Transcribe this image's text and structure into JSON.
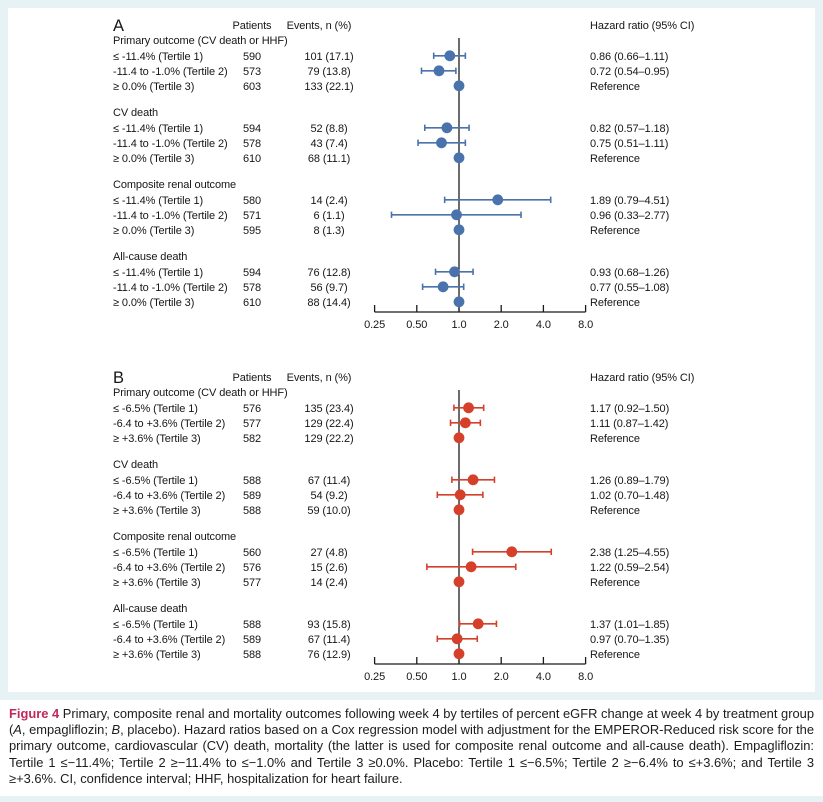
{
  "figure": {
    "frame_color": "#e7f2f5",
    "background": "#ffffff",
    "text_color": "#161616",
    "caption": {
      "label_color": "#c0295b",
      "segments": [
        {
          "text": "Figure 4",
          "style": "label"
        },
        {
          "text": " Primary, composite renal and mortality outcomes following week 4 by tertiles of percent eGFR change at week 4 by treatment group (",
          "style": "normal"
        },
        {
          "text": "A",
          "style": "italic"
        },
        {
          "text": ", empagliflozin; ",
          "style": "normal"
        },
        {
          "text": "B",
          "style": "italic"
        },
        {
          "text": ", placebo). Hazard ratios based on a Cox regression model with adjustment for the EMPEROR-Reduced risk score for the primary outcome, cardiovascular (CV) death, mortality (the latter is used for composite renal outcome and all-cause death). Empagliflozin: Tertile 1 ≤−11.4%; Tertile 2 ≥−11.4% to ≤−1.0% and Tertile 3 ≥0.0%. Placebo: Tertile 1 ≤−6.5%; Tertile 2 ≥−6.4% to ≤+3.6%; and Tertile 3 ≥+3.6%. CI, confidence interval; HHF, hospitalization for heart failure.",
          "style": "normal"
        }
      ]
    }
  },
  "chart_data": [
    {
      "type": "forest",
      "panel_label": "A",
      "treatment": "empagliflozin",
      "marker_color": "#4a72ad",
      "column_headers": {
        "patients": "Patients",
        "events": "Events, n (%)",
        "hazard": "Hazard ratio (95% CI)"
      },
      "axis": {
        "scale": "log",
        "reference_line": 1.0,
        "tick_values": [
          0.25,
          0.5,
          1.0,
          2.0,
          4.0,
          8.0
        ],
        "ticks": [
          "0.25",
          "0.50",
          "1.0",
          "2.0",
          "4.0",
          "8.0"
        ]
      },
      "groups": [
        {
          "heading": "Primary outcome (CV death or HHF)",
          "rows": [
            {
              "label": "≤ -11.4% (Tertile 1)",
              "patients": "590",
              "events": "101 (17.1)",
              "hr": 0.86,
              "ci_low": 0.66,
              "ci_high": 1.11,
              "hazard_text": "0.86 (0.66–1.11)"
            },
            {
              "label": "-11.4 to -1.0% (Tertile 2)",
              "patients": "573",
              "events": "79 (13.8)",
              "hr": 0.72,
              "ci_low": 0.54,
              "ci_high": 0.95,
              "hazard_text": "0.72 (0.54–0.95)"
            },
            {
              "label": "≥ 0.0% (Tertile 3)",
              "patients": "603",
              "events": "133 (22.1)",
              "hr": 1.0,
              "ci_low": null,
              "ci_high": null,
              "hazard_text": "Reference"
            }
          ]
        },
        {
          "heading": "CV death",
          "rows": [
            {
              "label": "≤ -11.4% (Tertile 1)",
              "patients": "594",
              "events": "52 (8.8)",
              "hr": 0.82,
              "ci_low": 0.57,
              "ci_high": 1.18,
              "hazard_text": "0.82 (0.57–1.18)"
            },
            {
              "label": "-11.4 to -1.0% (Tertile 2)",
              "patients": "578",
              "events": "43 (7.4)",
              "hr": 0.75,
              "ci_low": 0.51,
              "ci_high": 1.11,
              "hazard_text": "0.75 (0.51–1.11)"
            },
            {
              "label": "≥ 0.0% (Tertile 3)",
              "patients": "610",
              "events": "68 (11.1)",
              "hr": 1.0,
              "ci_low": null,
              "ci_high": null,
              "hazard_text": "Reference"
            }
          ]
        },
        {
          "heading": "Composite renal outcome",
          "rows": [
            {
              "label": "≤ -11.4% (Tertile 1)",
              "patients": "580",
              "events": "14 (2.4)",
              "hr": 1.89,
              "ci_low": 0.79,
              "ci_high": 4.51,
              "hazard_text": "1.89 (0.79–4.51)"
            },
            {
              "label": "-11.4 to -1.0% (Tertile 2)",
              "patients": "571",
              "events": "6 (1.1)",
              "hr": 0.96,
              "ci_low": 0.33,
              "ci_high": 2.77,
              "hazard_text": "0.96 (0.33–2.77)"
            },
            {
              "label": "≥ 0.0% (Tertile 3)",
              "patients": "595",
              "events": "8 (1.3)",
              "hr": 1.0,
              "ci_low": null,
              "ci_high": null,
              "hazard_text": "Reference"
            }
          ]
        },
        {
          "heading": "All-cause death",
          "rows": [
            {
              "label": "≤ -11.4% (Tertile 1)",
              "patients": "594",
              "events": "76 (12.8)",
              "hr": 0.93,
              "ci_low": 0.68,
              "ci_high": 1.26,
              "hazard_text": "0.93 (0.68–1.26)"
            },
            {
              "label": "-11.4 to -1.0% (Tertile 2)",
              "patients": "578",
              "events": "56 (9.7)",
              "hr": 0.77,
              "ci_low": 0.55,
              "ci_high": 1.08,
              "hazard_text": "0.77 (0.55–1.08)"
            },
            {
              "label": "≥ 0.0% (Tertile 3)",
              "patients": "610",
              "events": "88 (14.4)",
              "hr": 1.0,
              "ci_low": null,
              "ci_high": null,
              "hazard_text": "Reference"
            }
          ]
        }
      ]
    },
    {
      "type": "forest",
      "panel_label": "B",
      "treatment": "placebo",
      "marker_color": "#d5402b",
      "column_headers": {
        "patients": "Patients",
        "events": "Events, n (%)",
        "hazard": "Hazard ratio (95% CI)"
      },
      "axis": {
        "scale": "log",
        "reference_line": 1.0,
        "tick_values": [
          0.25,
          0.5,
          1.0,
          2.0,
          4.0,
          8.0
        ],
        "ticks": [
          "0.25",
          "0.50",
          "1.0",
          "2.0",
          "4.0",
          "8.0"
        ]
      },
      "groups": [
        {
          "heading": "Primary outcome (CV death or HHF)",
          "rows": [
            {
              "label": "≤ -6.5% (Tertile 1)",
              "patients": "576",
              "events": "135 (23.4)",
              "hr": 1.17,
              "ci_low": 0.92,
              "ci_high": 1.5,
              "hazard_text": "1.17 (0.92–1.50)"
            },
            {
              "label": "-6.4 to +3.6% (Tertile 2)",
              "patients": "577",
              "events": "129 (22.4)",
              "hr": 1.11,
              "ci_low": 0.87,
              "ci_high": 1.42,
              "hazard_text": "1.11 (0.87–1.42)"
            },
            {
              "label": "≥ +3.6% (Tertile 3)",
              "patients": "582",
              "events": "129 (22.2)",
              "hr": 1.0,
              "ci_low": null,
              "ci_high": null,
              "hazard_text": "Reference"
            }
          ]
        },
        {
          "heading": "CV death",
          "rows": [
            {
              "label": "≤ -6.5% (Tertile 1)",
              "patients": "588",
              "events": "67 (11.4)",
              "hr": 1.26,
              "ci_low": 0.89,
              "ci_high": 1.79,
              "hazard_text": "1.26 (0.89–1.79)"
            },
            {
              "label": "-6.4 to +3.6% (Tertile 2)",
              "patients": "589",
              "events": "54 (9.2)",
              "hr": 1.02,
              "ci_low": 0.7,
              "ci_high": 1.48,
              "hazard_text": "1.02 (0.70–1.48)"
            },
            {
              "label": "≥ +3.6% (Tertile 3)",
              "patients": "588",
              "events": "59 (10.0)",
              "hr": 1.0,
              "ci_low": null,
              "ci_high": null,
              "hazard_text": "Reference"
            }
          ]
        },
        {
          "heading": "Composite renal outcome",
          "rows": [
            {
              "label": "≤ -6.5% (Tertile 1)",
              "patients": "560",
              "events": "27 (4.8)",
              "hr": 2.38,
              "ci_low": 1.25,
              "ci_high": 4.55,
              "hazard_text": "2.38 (1.25–4.55)"
            },
            {
              "label": "-6.4 to +3.6% (Tertile 2)",
              "patients": "576",
              "events": "15 (2.6)",
              "hr": 1.22,
              "ci_low": 0.59,
              "ci_high": 2.54,
              "hazard_text": "1.22 (0.59–2.54)"
            },
            {
              "label": "≥ +3.6% (Tertile 3)",
              "patients": "577",
              "events": "14 (2.4)",
              "hr": 1.0,
              "ci_low": null,
              "ci_high": null,
              "hazard_text": "Reference"
            }
          ]
        },
        {
          "heading": "All-cause death",
          "rows": [
            {
              "label": "≤ -6.5% (Tertile 1)",
              "patients": "588",
              "events": "93 (15.8)",
              "hr": 1.37,
              "ci_low": 1.01,
              "ci_high": 1.85,
              "hazard_text": "1.37 (1.01–1.85)"
            },
            {
              "label": "-6.4 to +3.6% (Tertile 2)",
              "patients": "589",
              "events": "67 (11.4)",
              "hr": 0.97,
              "ci_low": 0.7,
              "ci_high": 1.35,
              "hazard_text": "0.97 (0.70–1.35)"
            },
            {
              "label": "≥ +3.6% (Tertile 3)",
              "patients": "588",
              "events": "76 (12.9)",
              "hr": 1.0,
              "ci_low": null,
              "ci_high": null,
              "hazard_text": "Reference"
            }
          ]
        }
      ]
    }
  ]
}
